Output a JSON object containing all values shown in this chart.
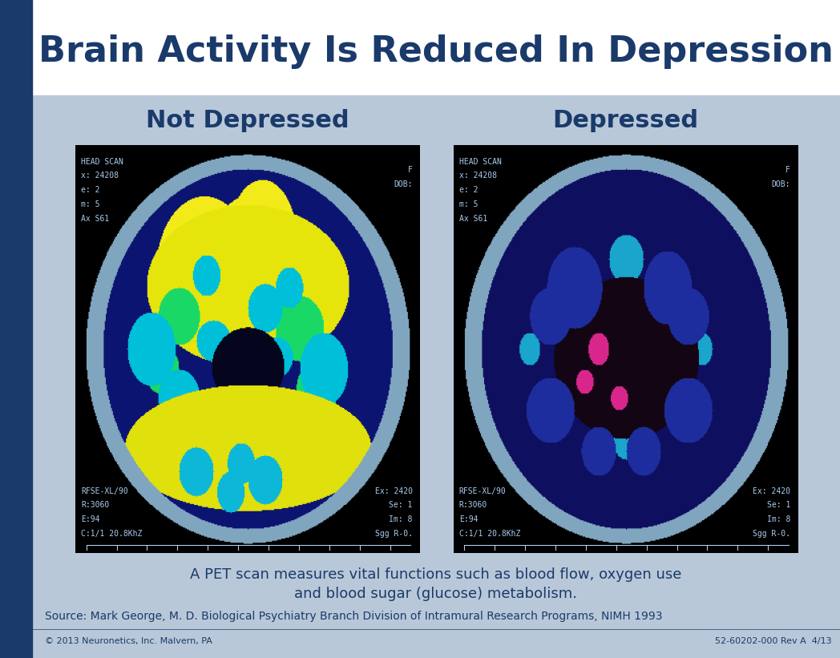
{
  "title": "Brain Activity Is Reduced In Depression",
  "title_color": "#1a3a6b",
  "title_fontsize": 32,
  "title_fontweight": "bold",
  "bg_color_top": "#ffffff",
  "bg_color_main": "#b8c8d8",
  "bg_color_sidebar": "#1a3a6b",
  "label_not_depressed": "Not Depressed",
  "label_depressed": "Depressed",
  "label_color": "#1a3a6b",
  "label_fontsize": 22,
  "caption_line1": "A PET scan measures vital functions such as blood flow, oxygen use",
  "caption_line2": "and blood sugar (glucose) metabolism.",
  "caption_color": "#1a3a6b",
  "caption_fontsize": 13,
  "source_text": "Source: Mark George, M. D. Biological Psychiatry Branch Division of Intramural Research Programs, NIMH 1993",
  "source_color": "#1a3a6b",
  "source_fontsize": 10,
  "footer_left": "© 2013 Neuronetics, Inc. Malvern, PA",
  "footer_right": "52-60202-000 Rev A  4/13",
  "footer_color": "#1a3a6b",
  "footer_fontsize": 8,
  "scan_info_lines": [
    "HEAD SCAN",
    "x: 24208",
    "e: 2",
    "m: 5",
    "Ax S61"
  ],
  "scan_info_right": [
    "F",
    "DOB:"
  ],
  "scan_bottom_left": [
    "RFSE-XL/90",
    "R:3060",
    "E:94",
    "C:1/1 20.8KhZ"
  ],
  "scan_bottom_right": [
    "Ex: 2420",
    "Se: 1",
    "Im: 8",
    "Sgg R-0."
  ],
  "scan_text_color": "#aaccee",
  "scan_text_fontsize": 7
}
